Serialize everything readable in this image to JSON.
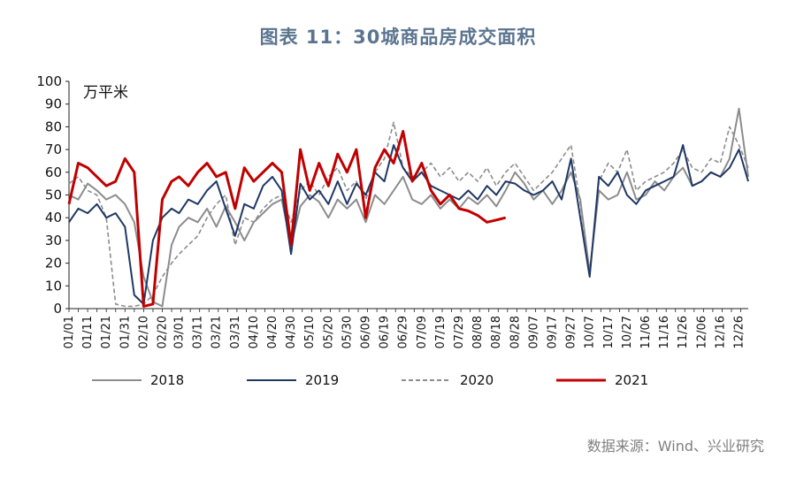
{
  "title": "图表 11：30城商品房成交面积",
  "source": "数据来源：Wind、兴业研究",
  "chart_data": {
    "type": "line",
    "unit": "万平米",
    "ylim": [
      0,
      100
    ],
    "yticks": [
      0,
      10,
      20,
      30,
      40,
      50,
      60,
      70,
      80,
      90,
      100
    ],
    "x_tick_labels": [
      "01/01",
      "01/11",
      "01/21",
      "01/31",
      "02/10",
      "02/20",
      "03/01",
      "03/11",
      "03/21",
      "03/31",
      "04/10",
      "04/20",
      "04/30",
      "05/10",
      "05/20",
      "05/30",
      "06/09",
      "06/19",
      "06/29",
      "07/09",
      "07/19",
      "07/29",
      "08/08",
      "08/18",
      "08/28",
      "09/07",
      "09/17",
      "09/27",
      "10/07",
      "10/17",
      "10/27",
      "11/06",
      "11/16",
      "11/26",
      "12/06",
      "12/16",
      "12/26"
    ],
    "grid": false,
    "legend_position": "bottom",
    "colors": {
      "2018": "#8c8c8c",
      "2019": "#1f3864",
      "2020": "#8c8c8c",
      "2021": "#c00000"
    },
    "series": [
      {
        "name": "2018",
        "style": "solid",
        "x": [
          "01/01",
          "01/06",
          "01/11",
          "01/16",
          "01/21",
          "01/26",
          "01/31",
          "02/05",
          "02/10",
          "02/15",
          "02/20",
          "02/25",
          "03/01",
          "03/06",
          "03/11",
          "03/16",
          "03/21",
          "03/26",
          "03/31",
          "04/05",
          "04/10",
          "04/15",
          "04/20",
          "04/25",
          "04/30",
          "05/05",
          "05/10",
          "05/15",
          "05/20",
          "05/25",
          "05/30",
          "06/04",
          "06/09",
          "06/14",
          "06/19",
          "06/24",
          "06/29",
          "07/04",
          "07/09",
          "07/14",
          "07/19",
          "07/24",
          "07/29",
          "08/03",
          "08/08",
          "08/13",
          "08/18",
          "08/23",
          "08/28",
          "09/02",
          "09/07",
          "09/12",
          "09/17",
          "09/22",
          "09/27",
          "10/02",
          "10/07",
          "10/12",
          "10/17",
          "10/22",
          "10/27",
          "11/01",
          "11/06",
          "11/11",
          "11/16",
          "11/21",
          "11/26",
          "12/01",
          "12/06",
          "12/11",
          "12/16",
          "12/21",
          "12/26",
          "12/31"
        ],
        "values": [
          50,
          48,
          55,
          52,
          48,
          50,
          46,
          38,
          14,
          3,
          1,
          28,
          36,
          40,
          38,
          44,
          36,
          45,
          38,
          30,
          38,
          42,
          46,
          48,
          28,
          45,
          50,
          47,
          40,
          48,
          44,
          48,
          38,
          50,
          46,
          52,
          58,
          48,
          46,
          50,
          44,
          48,
          44,
          49,
          46,
          50,
          45,
          52,
          60,
          55,
          48,
          52,
          46,
          52,
          60,
          48,
          16,
          52,
          48,
          50,
          60,
          48,
          50,
          56,
          52,
          58,
          62,
          54,
          56,
          60,
          58,
          66,
          88,
          58
        ]
      },
      {
        "name": "2019",
        "style": "solid",
        "x": [
          "01/01",
          "01/06",
          "01/11",
          "01/16",
          "01/21",
          "01/26",
          "01/31",
          "02/05",
          "02/10",
          "02/15",
          "02/20",
          "02/25",
          "03/01",
          "03/06",
          "03/11",
          "03/16",
          "03/21",
          "03/26",
          "03/31",
          "04/05",
          "04/10",
          "04/15",
          "04/20",
          "04/25",
          "04/30",
          "05/05",
          "05/10",
          "05/15",
          "05/20",
          "05/25",
          "05/30",
          "06/04",
          "06/09",
          "06/14",
          "06/19",
          "06/24",
          "06/29",
          "07/04",
          "07/09",
          "07/14",
          "07/19",
          "07/24",
          "07/29",
          "08/03",
          "08/08",
          "08/13",
          "08/18",
          "08/23",
          "08/28",
          "09/02",
          "09/07",
          "09/12",
          "09/17",
          "09/22",
          "09/27",
          "10/02",
          "10/07",
          "10/12",
          "10/17",
          "10/22",
          "10/27",
          "11/01",
          "11/06",
          "11/11",
          "11/16",
          "11/21",
          "11/26",
          "12/01",
          "12/06",
          "12/11",
          "12/16",
          "12/21",
          "12/26",
          "12/31"
        ],
        "values": [
          38,
          44,
          42,
          46,
          40,
          42,
          36,
          6,
          2,
          30,
          40,
          44,
          42,
          48,
          46,
          52,
          56,
          44,
          32,
          46,
          44,
          54,
          58,
          52,
          24,
          55,
          48,
          52,
          46,
          56,
          46,
          55,
          50,
          60,
          56,
          72,
          62,
          56,
          60,
          54,
          52,
          50,
          48,
          52,
          48,
          54,
          50,
          56,
          55,
          52,
          50,
          52,
          56,
          48,
          66,
          40,
          14,
          58,
          54,
          60,
          50,
          46,
          52,
          54,
          56,
          58,
          72,
          54,
          56,
          60,
          58,
          62,
          70,
          56
        ]
      },
      {
        "name": "2020",
        "style": "dashed",
        "x": [
          "01/01",
          "01/06",
          "01/11",
          "01/16",
          "01/21",
          "01/26",
          "01/31",
          "02/05",
          "02/10",
          "02/15",
          "02/20",
          "02/25",
          "03/01",
          "03/06",
          "03/11",
          "03/16",
          "03/21",
          "03/26",
          "03/31",
          "04/05",
          "04/10",
          "04/15",
          "04/20",
          "04/25",
          "04/30",
          "05/05",
          "05/10",
          "05/15",
          "05/20",
          "05/25",
          "05/30",
          "06/04",
          "06/09",
          "06/14",
          "06/19",
          "06/24",
          "06/29",
          "07/04",
          "07/09",
          "07/14",
          "07/19",
          "07/24",
          "07/29",
          "08/03",
          "08/08",
          "08/13",
          "08/18",
          "08/23",
          "08/28",
          "09/02",
          "09/07",
          "09/12",
          "09/17",
          "09/22",
          "09/27",
          "10/02",
          "10/07",
          "10/12",
          "10/17",
          "10/22",
          "10/27",
          "11/01",
          "11/06",
          "11/11",
          "11/16",
          "11/21",
          "11/26",
          "12/01",
          "12/06",
          "12/11",
          "12/16",
          "12/21",
          "12/26",
          "12/31"
        ],
        "values": [
          55,
          58,
          52,
          50,
          40,
          2,
          1,
          1,
          2,
          6,
          14,
          20,
          24,
          28,
          32,
          40,
          46,
          50,
          28,
          40,
          38,
          44,
          48,
          50,
          38,
          52,
          56,
          50,
          58,
          62,
          52,
          56,
          48,
          60,
          66,
          82,
          62,
          58,
          60,
          64,
          58,
          62,
          56,
          60,
          56,
          62,
          54,
          60,
          64,
          58,
          52,
          56,
          60,
          66,
          72,
          46,
          15,
          56,
          64,
          60,
          70,
          52,
          56,
          58,
          60,
          64,
          70,
          62,
          60,
          66,
          64,
          80,
          72,
          62
        ]
      },
      {
        "name": "2021",
        "style": "solid",
        "x": [
          "01/01",
          "01/06",
          "01/11",
          "01/16",
          "01/21",
          "01/26",
          "01/31",
          "02/05",
          "02/10",
          "02/15",
          "02/20",
          "02/25",
          "03/01",
          "03/06",
          "03/11",
          "03/16",
          "03/21",
          "03/26",
          "03/31",
          "04/05",
          "04/10",
          "04/15",
          "04/20",
          "04/25",
          "04/30",
          "05/05",
          "05/10",
          "05/15",
          "05/20",
          "05/25",
          "05/30",
          "06/04",
          "06/09",
          "06/14",
          "06/19",
          "06/24",
          "06/29",
          "07/04",
          "07/09",
          "07/14",
          "07/19",
          "07/24",
          "07/29",
          "08/03",
          "08/08",
          "08/13",
          "08/18",
          "08/23"
        ],
        "values": [
          46,
          64,
          62,
          58,
          54,
          56,
          66,
          60,
          1,
          2,
          48,
          56,
          58,
          54,
          60,
          64,
          58,
          60,
          44,
          62,
          56,
          60,
          64,
          60,
          28,
          70,
          52,
          64,
          54,
          68,
          60,
          70,
          40,
          62,
          70,
          64,
          78,
          56,
          64,
          52,
          46,
          50,
          44,
          43,
          41,
          38,
          39,
          40
        ]
      }
    ],
    "legend": [
      {
        "name": "2018",
        "style": "solid"
      },
      {
        "name": "2019",
        "style": "solid"
      },
      {
        "name": "2020",
        "style": "dashed"
      },
      {
        "name": "2021",
        "style": "solid"
      }
    ]
  }
}
